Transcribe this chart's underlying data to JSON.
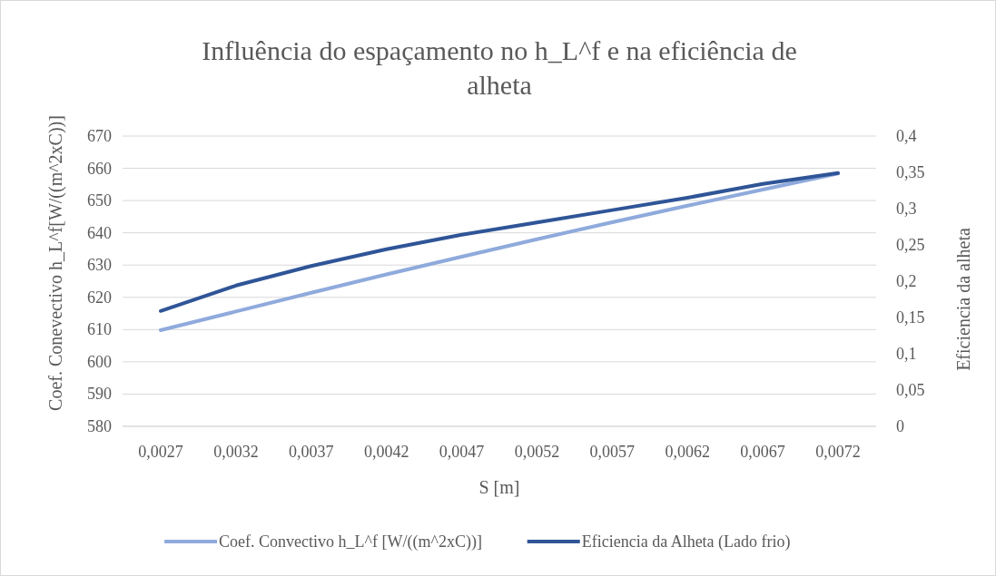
{
  "chart_data": {
    "type": "line",
    "title": "Influência do espaçamento no h_L^f e na eficiência de alheta",
    "xlabel": "S [m]",
    "ylabel": "Coef. Conevectivo h_L^f[W/((m^2xC))]",
    "y2label": "Eficiencia da alheta",
    "categories": [
      "0,0027",
      "0,0032",
      "0,0037",
      "0,0042",
      "0,0047",
      "0,0052",
      "0,0057",
      "0,0062",
      "0,0067",
      "0,0072"
    ],
    "series": [
      {
        "name": "Coef. Convectivo h_L^f [W/((m^2xC))]",
        "color": "#8faadc",
        "values": [
          609.8,
          615.6,
          621.4,
          627.1,
          632.6,
          638.0,
          643.3,
          648.4,
          653.4,
          658.4
        ]
      },
      {
        "name": "Eficiencia da Alheta (Lado frio)",
        "color": "#2f5597",
        "axis": "y2",
        "values": [
          0.159,
          0.194,
          0.221,
          0.244,
          0.264,
          0.281,
          0.298,
          0.315,
          0.334,
          0.349
        ]
      }
    ],
    "ylim": [
      580,
      670
    ],
    "yticks": [
      580,
      590,
      600,
      610,
      620,
      630,
      640,
      650,
      660,
      670
    ],
    "y2lim": [
      0,
      0.4
    ],
    "y2ticks": [
      {
        "value": 0,
        "label": "0"
      },
      {
        "value": 0.05,
        "label": "0,05"
      },
      {
        "value": 0.1,
        "label": "0,1"
      },
      {
        "value": 0.15,
        "label": "0,15"
      },
      {
        "value": 0.2,
        "label": "0,2"
      },
      {
        "value": 0.25,
        "label": "0,25"
      },
      {
        "value": 0.3,
        "label": "0,3"
      },
      {
        "value": 0.35,
        "label": "0,35"
      },
      {
        "value": 0.4,
        "label": "0,4"
      }
    ],
    "grid": "y",
    "legend": "bottom",
    "marker": "none",
    "line_style": "solid"
  }
}
